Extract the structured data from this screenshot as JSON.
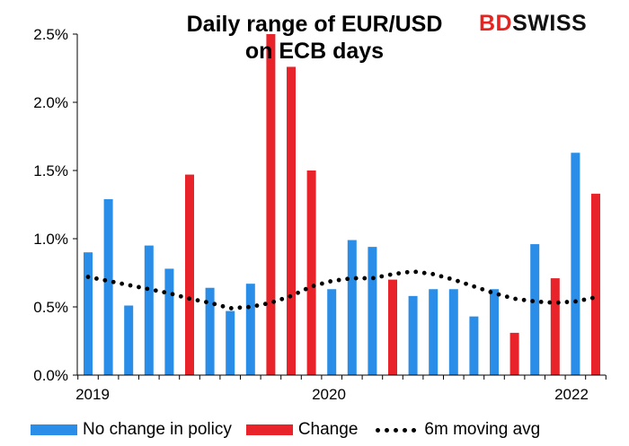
{
  "title_line1": "Daily range of EUR/USD",
  "title_line2": "on ECB days",
  "logo": {
    "part1": "BD",
    "part2": "SWISS"
  },
  "colors": {
    "no_change": "#2a8ee8",
    "change": "#e8232a",
    "avg": "#000000"
  },
  "legend": {
    "no_change": "No change in policy",
    "change": "Change",
    "avg": "6m moving avg"
  },
  "chart_data": {
    "type": "bar",
    "y_unit": "%",
    "ylim": [
      0,
      2.5
    ],
    "y_ticks": [
      "0.0%",
      "0.5%",
      "1.0%",
      "1.5%",
      "2.0%",
      "2.5%"
    ],
    "x_ticks": [
      "2019",
      "2020",
      "2022"
    ],
    "grid": false,
    "legend_position": "bottom",
    "series": [
      {
        "name": "No change in policy",
        "kind": "bar"
      },
      {
        "name": "Change",
        "kind": "bar"
      },
      {
        "name": "6m moving avg",
        "kind": "dotted-line"
      }
    ],
    "bars": [
      {
        "value": 0.9,
        "group": "no_change"
      },
      {
        "value": 1.29,
        "group": "no_change"
      },
      {
        "value": 0.51,
        "group": "no_change"
      },
      {
        "value": 0.95,
        "group": "no_change"
      },
      {
        "value": 0.78,
        "group": "no_change"
      },
      {
        "value": 1.47,
        "group": "change"
      },
      {
        "value": 0.64,
        "group": "no_change"
      },
      {
        "value": 0.47,
        "group": "no_change"
      },
      {
        "value": 0.67,
        "group": "no_change"
      },
      {
        "value": 2.5,
        "group": "change"
      },
      {
        "value": 2.26,
        "group": "change"
      },
      {
        "value": 1.5,
        "group": "change"
      },
      {
        "value": 0.63,
        "group": "no_change"
      },
      {
        "value": 0.99,
        "group": "no_change"
      },
      {
        "value": 0.94,
        "group": "no_change"
      },
      {
        "value": 0.7,
        "group": "change"
      },
      {
        "value": 0.58,
        "group": "no_change"
      },
      {
        "value": 0.63,
        "group": "no_change"
      },
      {
        "value": 0.63,
        "group": "no_change"
      },
      {
        "value": 0.43,
        "group": "no_change"
      },
      {
        "value": 0.63,
        "group": "no_change"
      },
      {
        "value": 0.31,
        "group": "change"
      },
      {
        "value": 0.96,
        "group": "no_change"
      },
      {
        "value": 0.71,
        "group": "change"
      },
      {
        "value": 1.63,
        "group": "no_change"
      },
      {
        "value": 1.33,
        "group": "change"
      }
    ],
    "moving_avg": [
      0.72,
      0.69,
      0.66,
      0.63,
      0.6,
      0.56,
      0.53,
      0.49,
      0.5,
      0.53,
      0.58,
      0.65,
      0.69,
      0.71,
      0.71,
      0.74,
      0.76,
      0.74,
      0.7,
      0.65,
      0.6,
      0.56,
      0.54,
      0.53,
      0.54,
      0.57
    ]
  }
}
